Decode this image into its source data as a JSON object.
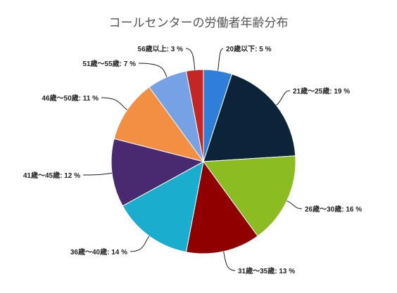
{
  "chart_data": {
    "type": "pie",
    "title": "コールセンターの労働者年齢分布",
    "start_angle_deg": 0,
    "direction": "clockwise",
    "legend": "none",
    "slices": [
      {
        "label": "20歳以下",
        "value": 5,
        "display": "20歳以下: 5 %",
        "color": "#2f7ed8"
      },
      {
        "label": "21歳～25歳",
        "value": 19,
        "display": "21歳～25歳: 19 %",
        "color": "#0d233a"
      },
      {
        "label": "26歳～30歳",
        "value": 16,
        "display": "26歳～30歳: 16 %",
        "color": "#8bbc21"
      },
      {
        "label": "31歳～35歳",
        "value": 13,
        "display": "31歳～35歳: 13 %",
        "color": "#910000"
      },
      {
        "label": "36歳～40歳",
        "value": 14,
        "display": "36歳～40歳: 14 %",
        "color": "#1aadce"
      },
      {
        "label": "41歳～45歳",
        "value": 12,
        "display": "41歳～45歳: 12 %",
        "color": "#492970"
      },
      {
        "label": "46歳～50歳",
        "value": 11,
        "display": "46歳～50歳: 11 %",
        "color": "#f28f43"
      },
      {
        "label": "51歳～55歳",
        "value": 7,
        "display": "51歳～55歳: 7 %",
        "color": "#77a1e5"
      },
      {
        "label": "56歳以上",
        "value": 3,
        "display": "56歳以上: 3 %",
        "color": "#c42525"
      }
    ]
  }
}
